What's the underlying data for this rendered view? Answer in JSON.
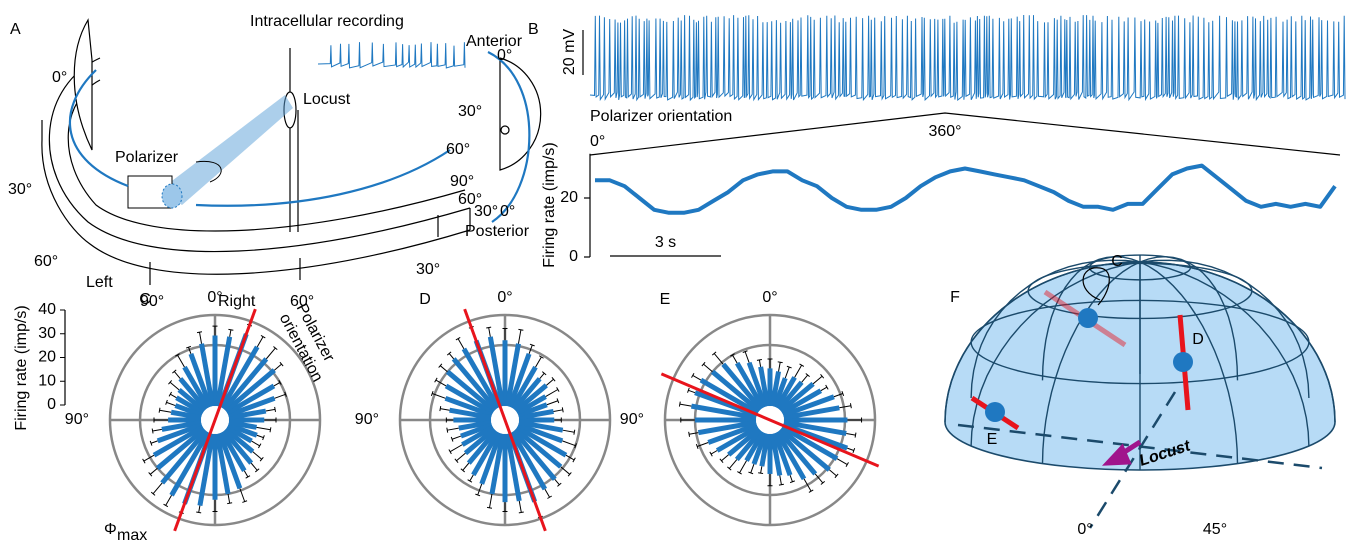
{
  "panel_a": {
    "letter": "A",
    "recording": "Intracellular recording",
    "locust": "Locust",
    "polarizer": "Polarizer",
    "left": "Left",
    "right": "Right",
    "arena_angles": [
      "0°",
      "30°",
      "60°",
      "90°",
      "60°",
      "30°"
    ],
    "eye": {
      "anterior": "Anterior",
      "posterior": "Posterior",
      "angles": [
        "0°",
        "30°",
        "60°",
        "90°",
        "60°",
        "30°",
        "0°"
      ]
    }
  },
  "panel_b": {
    "letter": "B",
    "voltage_scale": "20 mV",
    "stimulus_label": "Polarizer orientation",
    "stimulus_start": "0°",
    "stimulus_peak": "360°"
  },
  "chart_data": [
    {
      "type": "line",
      "ylabel": "Firing rate (imp/s)",
      "color": "#1f78c1",
      "x": [
        0,
        0.4,
        0.8,
        1.2,
        1.6,
        2,
        2.4,
        2.8,
        3.2,
        3.6,
        4,
        4.4,
        4.8,
        5.2,
        5.6,
        6,
        6.4,
        6.8,
        7.2,
        7.6,
        8,
        8.4,
        8.8,
        9.2,
        9.6,
        10,
        10.4,
        10.8,
        11.2,
        11.6,
        12,
        12.4,
        12.8,
        13.2,
        13.6,
        14,
        14.4,
        14.8,
        15.2,
        15.6,
        16,
        16.4,
        16.8,
        17.2,
        17.6,
        18,
        18.4,
        18.8,
        19.2,
        19.6,
        20
      ],
      "values": [
        26,
        26,
        24,
        20,
        16,
        15,
        15,
        16,
        19,
        22,
        26,
        28,
        29,
        29,
        26,
        24,
        20,
        17,
        16,
        16,
        17,
        20,
        24,
        27,
        29,
        30,
        29,
        28,
        27,
        26,
        24,
        22,
        19,
        17,
        17,
        16,
        18,
        18,
        23,
        28,
        30,
        31,
        27,
        23,
        19,
        17,
        18,
        17,
        18,
        17,
        24
      ],
      "xlim": [
        0,
        20
      ],
      "ylim": [
        0,
        35
      ],
      "yticks": [
        0,
        20
      ],
      "scalebar": {
        "value": 3,
        "label": "3 s"
      }
    },
    {
      "type": "polar_bar",
      "letter": "C",
      "color": "#1f78c1",
      "rlim": [
        0,
        40
      ],
      "rticks": [
        0,
        10,
        20,
        30,
        40
      ],
      "rlabel": "Firing rate (imp/s)",
      "orientation_label": [
        "Polarizer",
        "orientation"
      ],
      "pref_angle": 340,
      "pref_label": "Φ",
      "pref_label_sub": "max",
      "angle_labels": [
        {
          "value": 0,
          "label": "0°"
        },
        {
          "value": 90,
          "label": "90°"
        }
      ],
      "theta": [
        0,
        10,
        20,
        30,
        40,
        50,
        60,
        70,
        80,
        90,
        100,
        110,
        120,
        130,
        140,
        150,
        160,
        170,
        180,
        190,
        200,
        210,
        220,
        230,
        240,
        250,
        260,
        270,
        280,
        290,
        300,
        310,
        320,
        330,
        340,
        350
      ],
      "values": [
        30,
        27,
        24,
        20,
        17,
        14,
        13,
        12,
        13,
        14,
        17,
        20,
        24,
        26,
        29,
        31,
        32,
        31,
        28,
        26,
        25,
        19,
        18,
        15,
        12,
        13,
        12,
        15,
        16,
        21,
        23,
        27,
        28,
        30,
        33,
        30
      ],
      "errors": [
        4,
        5,
        3,
        6,
        4,
        5,
        3,
        4,
        5,
        6,
        4,
        3,
        5,
        4,
        6,
        5,
        4,
        3,
        5,
        4,
        6,
        3,
        4,
        5,
        4,
        3,
        6,
        5,
        4,
        5,
        3,
        4,
        6,
        5,
        4,
        3
      ]
    },
    {
      "type": "polar_bar",
      "letter": "D",
      "color": "#1f78c1",
      "rlim": [
        0,
        40
      ],
      "pref_angle": 20,
      "angle_labels": [
        {
          "value": 0,
          "label": "0°"
        },
        {
          "value": 90,
          "label": "90°"
        }
      ],
      "theta": [
        0,
        10,
        20,
        30,
        40,
        50,
        60,
        70,
        80,
        90,
        100,
        110,
        120,
        130,
        140,
        150,
        160,
        170,
        180,
        190,
        200,
        210,
        220,
        230,
        240,
        250,
        260,
        270,
        280,
        290,
        300,
        310,
        320,
        330,
        340,
        350
      ],
      "values": [
        28,
        30,
        30,
        29,
        28,
        26,
        23,
        21,
        18,
        16,
        14,
        14,
        15,
        16,
        18,
        21,
        23,
        26,
        29,
        29,
        31,
        28,
        27,
        25,
        24,
        20,
        19,
        15,
        15,
        13,
        14,
        17,
        17,
        20,
        24,
        27
      ],
      "errors": [
        5,
        4,
        6,
        5,
        3,
        4,
        5,
        6,
        4,
        3,
        5,
        4,
        6,
        5,
        4,
        3,
        5,
        6,
        4,
        5,
        7,
        4,
        3,
        5,
        4,
        6,
        5,
        3,
        4,
        5,
        6,
        4,
        3,
        5,
        4,
        6
      ]
    },
    {
      "type": "polar_bar",
      "letter": "E",
      "color": "#1f78c1",
      "rlim": [
        0,
        40
      ],
      "pref_angle": 67,
      "angle_labels": [
        {
          "value": 0,
          "label": "0°"
        },
        {
          "value": 90,
          "label": "90°"
        }
      ],
      "theta": [
        0,
        10,
        20,
        30,
        40,
        50,
        60,
        70,
        80,
        90,
        100,
        110,
        120,
        130,
        140,
        150,
        160,
        170,
        180,
        190,
        200,
        210,
        220,
        230,
        240,
        250,
        260,
        270,
        280,
        290,
        300,
        310,
        320,
        330,
        340,
        350
      ],
      "values": [
        16,
        17,
        20,
        22,
        25,
        26,
        28,
        28,
        28,
        26,
        25,
        22,
        20,
        17,
        16,
        14,
        14,
        14,
        17,
        18,
        19,
        23,
        24,
        27,
        27,
        29,
        27,
        27,
        24,
        23,
        19,
        18,
        15,
        15,
        13,
        15
      ],
      "errors": [
        4,
        3,
        5,
        4,
        6,
        5,
        4,
        3,
        5,
        6,
        4,
        5,
        3,
        4,
        5,
        6,
        4,
        3,
        5,
        4,
        3,
        6,
        5,
        4,
        5,
        3,
        4,
        6,
        5,
        4,
        3,
        5,
        4,
        6,
        5,
        4
      ]
    }
  ],
  "panel_f": {
    "letter": "F",
    "c": "C",
    "d": "D",
    "e": "E",
    "locust": "Locust",
    "angle_0": "0°",
    "angle_45": "45°"
  }
}
